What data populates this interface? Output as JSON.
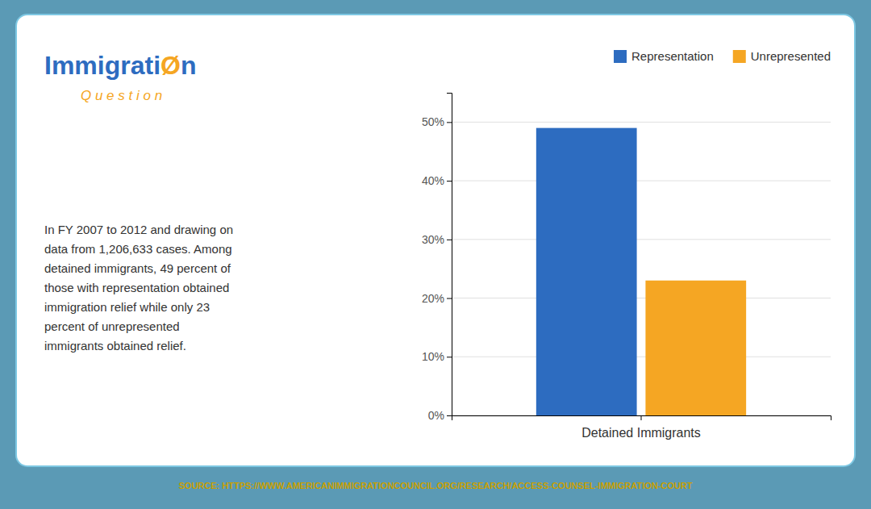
{
  "chart_data": {
    "type": "bar",
    "categories": [
      "Detained Immigrants"
    ],
    "series": [
      {
        "name": "Representation",
        "color": "#2d6cc0",
        "values": [
          49
        ]
      },
      {
        "name": "Unrepresented",
        "color": "#f5a623",
        "values": [
          23
        ]
      }
    ],
    "ylim": [
      0,
      55
    ],
    "yticks": [
      {
        "value": 0,
        "label": "0%"
      },
      {
        "value": 10,
        "label": "10%"
      },
      {
        "value": 20,
        "label": "20%"
      },
      {
        "value": 30,
        "label": "30%"
      },
      {
        "value": 40,
        "label": "40%"
      },
      {
        "value": 50,
        "label": "50%"
      }
    ],
    "grid": true,
    "legend": "top-right",
    "annotations": [
      "Immigrati",
      "Ø",
      "n",
      "Q u e s t i o n",
      "In FY 2007 to 2012 and drawing on\ndata from 1,206,633 cases. Among\ndetained immigrants, 49 percent of\nthose with representation obtained\nimmigration relief while only 23\npercent of unrepresented\nimmigrants obtained relief.",
      "SOURCE: HTTPS://WWW.AMERICANIMMIGRATIONCOUNCIL.ORG/RESEARCH/ACCESS-COUNSEL-IMMIGRATION-COURT"
    ]
  }
}
